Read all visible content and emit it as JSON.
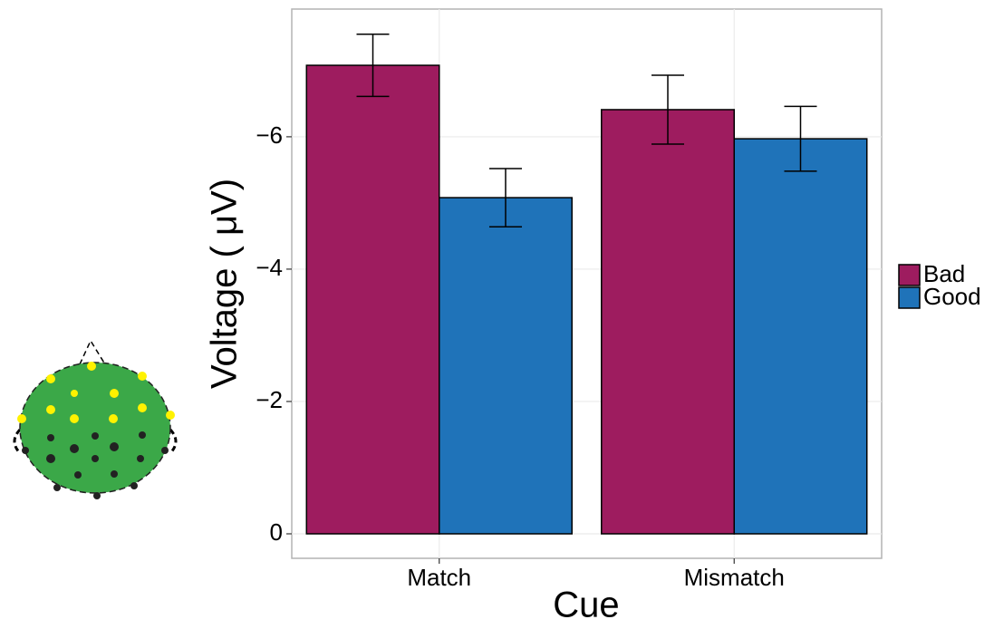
{
  "chart_data": {
    "type": "bar",
    "x_label": "Cue",
    "y_label": "Voltage ( μV)",
    "categories": [
      "Match",
      "Mismatch"
    ],
    "series": [
      {
        "name": "Bad",
        "color": "#9e1c5f",
        "values": [
          -7.08,
          -6.41
        ],
        "errors": [
          0.47,
          0.52
        ]
      },
      {
        "name": "Good",
        "color": "#1f73b9",
        "values": [
          -5.08,
          -5.97
        ],
        "errors": [
          0.44,
          0.49
        ]
      }
    ],
    "ylim": [
      0.37,
      -7.93
    ],
    "yticks": [
      0,
      {
        "value": -2,
        "label": "−2"
      },
      {
        "value": -4,
        "label": "−4"
      },
      {
        "value": -6,
        "label": "−6"
      }
    ],
    "grid": true,
    "legend": "right"
  }
}
